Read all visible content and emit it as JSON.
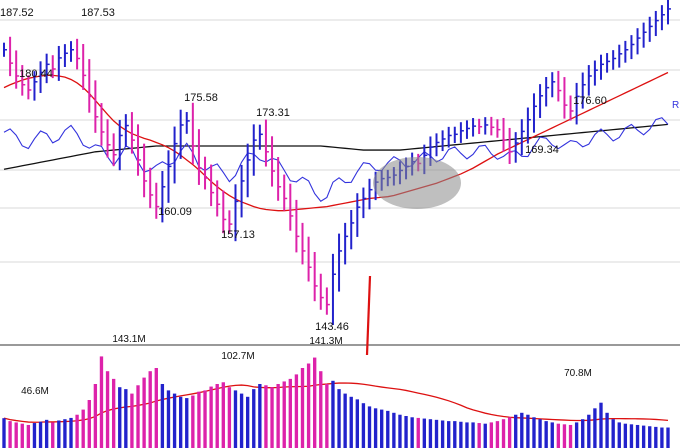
{
  "chart_data": {
    "type": "line",
    "title": "",
    "xlabel": "",
    "ylabel": "",
    "grid": true,
    "colors": {
      "up_bar": "#2222cc",
      "down_bar": "#dd22aa",
      "ma_short": "#dd1111",
      "ma_long": "#111111",
      "relative_strength": "#3333dd",
      "annotation_arrow": "#dd1111",
      "highlight_ellipse": "#8a8a8a"
    },
    "price_labels": [
      {
        "text": "187.52",
        "price": 187.52
      },
      {
        "text": "187.53",
        "price": 187.53
      },
      {
        "text": "180.44",
        "price": 180.44
      },
      {
        "text": "175.58",
        "price": 175.58
      },
      {
        "text": "173.31",
        "price": 173.31
      },
      {
        "text": "160.09",
        "price": 160.09
      },
      {
        "text": "157.13",
        "price": 157.13
      },
      {
        "text": "143.46",
        "price": 143.46
      },
      {
        "text": "169.34",
        "price": 169.34
      },
      {
        "text": "176.60",
        "price": 176.6
      }
    ],
    "volume_labels": [
      {
        "text": "46.6M",
        "volume": 46.6
      },
      {
        "text": "143.1M",
        "volume": 143.1
      },
      {
        "text": "102.7M",
        "volume": 102.7
      },
      {
        "text": "141.3M",
        "volume": 141.3
      },
      {
        "text": "70.8M",
        "volume": 70.8
      }
    ],
    "rs_label": "R",
    "price_bars": {
      "count": 110,
      "close": [
        187.5,
        185.2,
        183.0,
        181.5,
        180.6,
        182.0,
        183.6,
        185.0,
        184.2,
        186.1,
        186.9,
        187.5,
        186.0,
        183.1,
        179.5,
        176.0,
        173.4,
        171.2,
        169.5,
        172.8,
        174.5,
        172.0,
        168.6,
        165.0,
        162.6,
        160.6,
        164.0,
        167.5,
        171.4,
        174.6,
        175.3,
        171.0,
        167.2,
        165.5,
        163.0,
        161.0,
        158.4,
        157.6,
        161.5,
        165.0,
        168.6,
        172.0,
        173.0,
        170.0,
        166.7,
        164.0,
        162.0,
        159.0,
        155.5,
        153.0,
        150.2,
        147.0,
        145.0,
        143.8,
        149.0,
        153.0,
        155.5,
        157.8,
        160.5,
        162.0,
        163.5,
        164.8,
        165.4,
        165.6,
        166.0,
        166.8,
        167.5,
        168.3,
        168.0,
        169.4,
        170.8,
        171.6,
        172.2,
        172.8,
        173.0,
        173.6,
        174.0,
        174.4,
        174.3,
        174.6,
        174.2,
        173.8,
        172.0,
        170.0,
        171.5,
        173.5,
        175.5,
        177.8,
        179.6,
        181.0,
        182.0,
        180.5,
        178.0,
        177.0,
        179.5,
        181.5,
        183.0,
        184.0,
        185.0,
        185.5,
        186.0,
        186.8,
        187.5,
        188.4,
        189.5,
        190.5,
        191.5,
        192.5,
        193.5,
        194.5
      ],
      "volume": [
        46.6,
        42,
        40,
        38,
        36,
        39,
        41,
        44,
        40,
        43,
        45,
        47,
        52,
        60,
        75,
        100,
        143.1,
        120,
        108,
        95,
        92,
        85,
        98,
        110,
        120,
        125,
        100,
        90,
        85,
        80,
        78,
        82,
        88,
        90,
        96,
        100,
        102.7,
        95,
        90,
        85,
        80,
        92,
        100,
        98,
        95,
        100,
        104,
        108,
        115,
        125,
        132,
        141.3,
        120,
        100,
        105,
        92,
        85,
        80,
        76,
        70,
        65,
        62,
        60,
        58,
        55,
        52,
        50,
        48,
        47,
        46,
        45,
        44,
        43,
        42,
        42,
        41,
        40,
        40,
        39,
        38,
        40,
        42,
        45,
        48,
        52,
        55,
        52,
        48,
        45,
        42,
        40,
        38,
        37,
        36,
        40,
        45,
        52,
        62,
        70.8,
        55,
        45,
        40,
        38,
        37,
        36,
        35,
        34,
        33,
        32,
        32
      ],
      "ma50": [
        181.0,
        181.5,
        181.9,
        182.3,
        182.6,
        182.8,
        183.0,
        183.1,
        183.1,
        183.0,
        182.8,
        182.4,
        181.8,
        181.0,
        180.0,
        178.8,
        177.6,
        176.4,
        175.3,
        174.4,
        173.7,
        173.1,
        172.7,
        172.3,
        172.0,
        171.6,
        171.2,
        170.7,
        170.1,
        169.4,
        168.6,
        167.8,
        166.9,
        165.9,
        164.9,
        164.0,
        163.2,
        162.5,
        161.9,
        161.4,
        161.0,
        160.6,
        160.3,
        160.1,
        160.0,
        159.9,
        159.9,
        160.0,
        160.1,
        160.2,
        160.3,
        160.4,
        160.5,
        160.6,
        160.8,
        161.0,
        161.2,
        161.4,
        161.6,
        161.8,
        162.0,
        162.1,
        162.2,
        162.3,
        162.5,
        162.8,
        163.1,
        163.4,
        163.7,
        164.0,
        164.3,
        164.6,
        165.0,
        165.4,
        165.8,
        166.2,
        166.7,
        167.2,
        167.8,
        168.4,
        169.0,
        169.6,
        170.1,
        170.6,
        171.1,
        171.6,
        172.1,
        172.6,
        173.1,
        173.6,
        174.1,
        174.6,
        175.1,
        175.6,
        176.1,
        176.6,
        177.1,
        177.6,
        178.1,
        178.6,
        179.1,
        179.6,
        180.1,
        180.6,
        181.1,
        181.6,
        182.1,
        182.6,
        183.1,
        183.6
      ],
      "ma200": [
        167.0,
        167.2,
        167.4,
        167.6,
        167.8,
        168.0,
        168.2,
        168.4,
        168.6,
        168.8,
        169.0,
        169.2,
        169.4,
        169.6,
        169.8,
        170.0,
        170.1,
        170.2,
        170.3,
        170.4,
        170.5,
        170.6,
        170.7,
        170.8,
        170.9,
        171.0,
        171.0,
        171.0,
        171.0,
        171.0,
        171.0,
        171.0,
        171.0,
        171.0,
        171.0,
        171.0,
        171.0,
        171.0,
        171.0,
        171.0,
        171.0,
        171.0,
        171.0,
        171.0,
        171.0,
        171.0,
        171.0,
        171.0,
        171.0,
        171.0,
        171.0,
        171.0,
        171.0,
        170.9,
        170.8,
        170.7,
        170.6,
        170.5,
        170.4,
        170.3,
        170.3,
        170.3,
        170.3,
        170.3,
        170.3,
        170.3,
        170.4,
        170.5,
        170.6,
        170.7,
        170.8,
        170.9,
        171.0,
        171.1,
        171.2,
        171.3,
        171.4,
        171.5,
        171.6,
        171.7,
        171.8,
        171.9,
        172.0,
        172.1,
        172.2,
        172.3,
        172.4,
        172.5,
        172.6,
        172.7,
        172.8,
        172.9,
        173.0,
        173.1,
        173.2,
        173.3,
        173.4,
        173.5,
        173.6,
        173.7,
        173.8,
        173.9,
        174.0,
        174.1,
        174.2,
        174.3,
        174.4,
        174.5,
        174.6,
        174.7
      ]
    }
  }
}
